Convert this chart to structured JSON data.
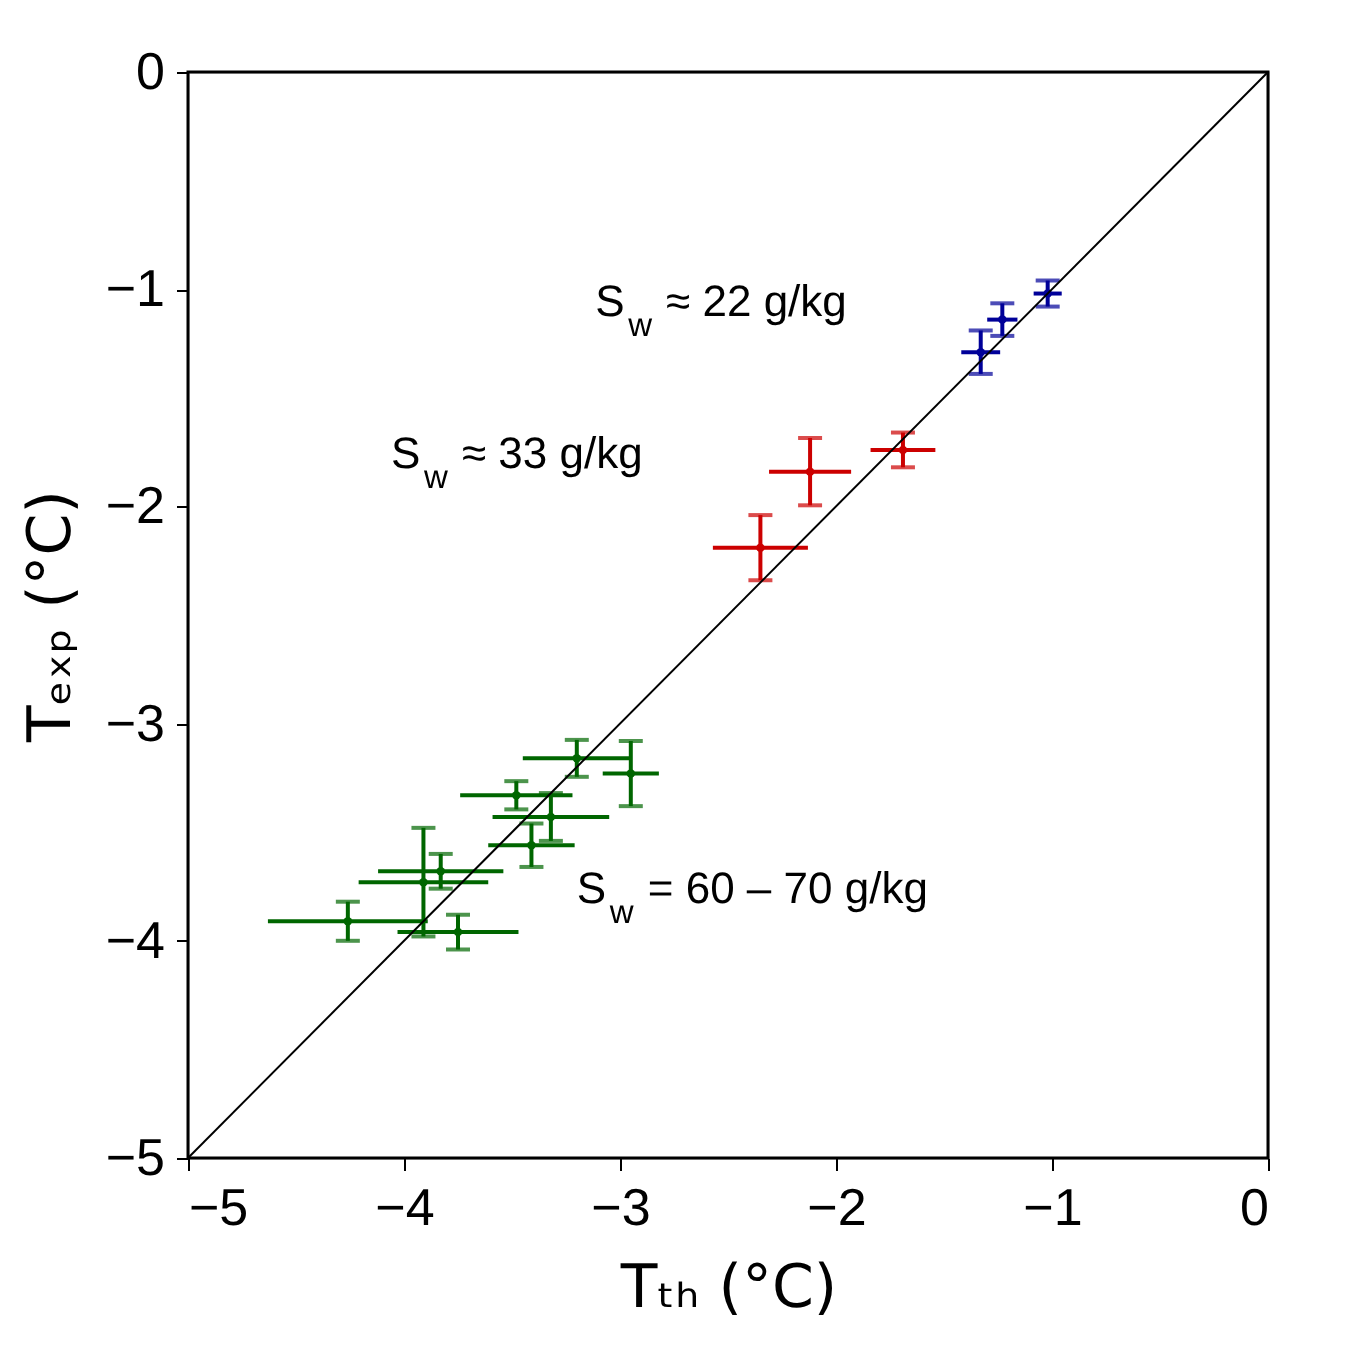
{
  "chart_data": {
    "type": "scatter",
    "xlabel": "Tₜₕ (°C)",
    "ylabel": "Tₑₓₚ (°C)",
    "xlim": [
      -5,
      0
    ],
    "ylim": [
      -5,
      0
    ],
    "xticks": [
      -5,
      -4,
      -3,
      -2,
      -1,
      0
    ],
    "yticks": [
      -5,
      -4,
      -3,
      -2,
      -1,
      0
    ],
    "grid": false,
    "marker": "circle",
    "series": [
      {
        "color": "#006600",
        "x": [
          -4.26,
          -3.91,
          -3.83,
          -3.75,
          -3.41,
          -3.32,
          -3.48,
          -3.2,
          -2.95
        ],
        "values": [
          -3.91,
          -3.73,
          -3.68,
          -3.96,
          -3.56,
          -3.43,
          -3.33,
          -3.16,
          -3.23
        ],
        "errors": [
          0.09,
          0.25,
          0.08,
          0.08,
          0.1,
          0.11,
          0.065,
          0.085,
          0.15
        ],
        "xerrors": [
          0.37,
          0.3,
          0.29,
          0.28,
          0.2,
          0.27,
          0.26,
          0.25,
          0.13
        ]
      },
      {
        "color": "#cc0000",
        "x": [
          -2.35,
          -2.12,
          -1.69
        ],
        "values": [
          -2.19,
          -1.84,
          -1.74
        ],
        "errors": [
          0.15,
          0.155,
          0.08
        ],
        "xerrors": [
          0.22,
          0.19,
          0.15
        ]
      },
      {
        "color": "#000099",
        "x": [
          -1.33,
          -1.23,
          -1.02
        ],
        "values": [
          -1.29,
          -1.14,
          -1.02
        ],
        "errors": [
          0.1,
          0.075,
          0.06
        ],
        "xerrors": [
          0.09,
          0.07,
          0.065
        ]
      },
      {
        "type": "line",
        "color": "#000000",
        "marker": "none",
        "x": [
          -5,
          0
        ],
        "values": [
          -5,
          0
        ]
      }
    ],
    "annotations": [
      "S$_{w}$ ≈ 22  g/kg",
      "S$_{w}$ ≈ 33 g/kg",
      "S$_{w}$ = 60 – 70 g/kg"
    ]
  }
}
